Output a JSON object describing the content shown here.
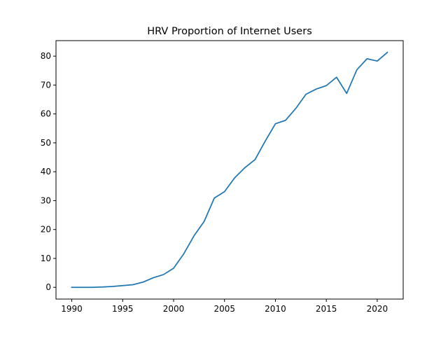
{
  "chart_data": {
    "type": "line",
    "title": "HRV Proportion of Internet Users",
    "xlabel": "",
    "ylabel": "",
    "xlim": [
      1988.45,
      2022.55
    ],
    "ylim": [
      -4.07,
      85.37
    ],
    "x_ticks": [
      1990,
      1995,
      2000,
      2005,
      2010,
      2015,
      2020
    ],
    "y_ticks": [
      0,
      10,
      20,
      30,
      40,
      50,
      60,
      70,
      80
    ],
    "grid": false,
    "legend": "none",
    "series": [
      {
        "color": "#1f77b4",
        "x": [
          1990,
          1991,
          1992,
          1993,
          1994,
          1995,
          1996,
          1997,
          1998,
          1999,
          2000,
          2001,
          2002,
          2003,
          2004,
          2005,
          2006,
          2007,
          2008,
          2009,
          2010,
          2011,
          2012,
          2013,
          2014,
          2015,
          2016,
          2017,
          2018,
          2019,
          2020,
          2021
        ],
        "y": [
          0,
          0,
          0,
          0.1,
          0.3,
          0.6,
          0.9,
          1.8,
          3.3,
          4.4,
          6.6,
          11.6,
          17.8,
          22.8,
          30.9,
          33.1,
          37.9,
          41.4,
          44.2,
          50.6,
          56.6,
          57.8,
          61.9,
          66.8,
          68.6,
          69.8,
          72.7,
          67.1,
          75.3,
          79.1,
          78.3,
          81.3
        ]
      }
    ]
  }
}
